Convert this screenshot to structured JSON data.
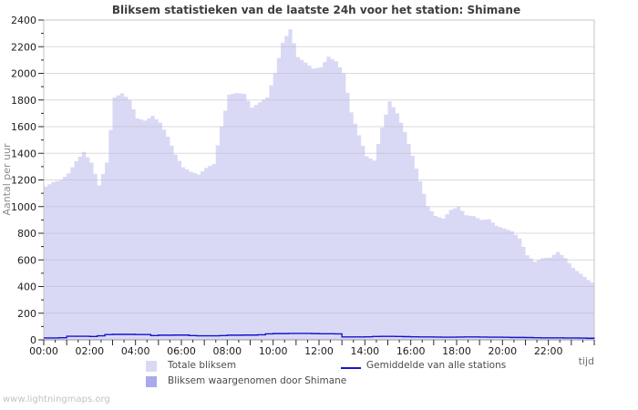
{
  "page": {
    "watermark": "www.lightningmaps.org"
  },
  "chart_data": {
    "type": "area",
    "title": "Bliksem statistieken van de laatste 24h voor het station: Shimane",
    "ylabel": "Aantal per uur",
    "xlabel": "tijd",
    "ylim": [
      0,
      2400
    ],
    "xlim_hours": [
      0,
      24
    ],
    "grid": "horizontal",
    "legend_position": "bottom",
    "y_tick_step": 200,
    "y_minor_tick_step": 100,
    "x_label_step_hours": 2,
    "x_minor_tick_minutes": 30,
    "y_tick_labels": [
      "0",
      "200",
      "400",
      "600",
      "800",
      "1000",
      "1200",
      "1400",
      "1600",
      "1800",
      "2000",
      "2200",
      "2400"
    ],
    "x_tick_labels": [
      "00:00",
      "02:00",
      "04:00",
      "06:00",
      "08:00",
      "10:00",
      "12:00",
      "14:00",
      "16:00",
      "18:00",
      "20:00",
      "22:00"
    ],
    "sample_step_minutes": 20,
    "colors": {
      "background": "#ffffff",
      "border": "#c4c4c4",
      "grid": "#b9b9c6",
      "axis": "#999999",
      "tick": "#2a2a2a",
      "tick_label": "#1c1c1c",
      "title": "#3d3d3d",
      "axis_title": "#8c8c8c",
      "watermark": "#c3c3c3",
      "legend_text": "#4a4a4a"
    },
    "series": [
      {
        "name": "Totale bliksem",
        "type": "area",
        "color": "#d9d9f6",
        "values": [
          1150,
          1185,
          1197,
          1250,
          1340,
          1410,
          1330,
          1160,
          1330,
          1820,
          1850,
          1800,
          1662,
          1645,
          1680,
          1630,
          1525,
          1390,
          1295,
          1262,
          1240,
          1290,
          1320,
          1600,
          1840,
          1852,
          1845,
          1742,
          1782,
          1820,
          2000,
          2230,
          2330,
          2122,
          2080,
          2035,
          2045,
          2125,
          2090,
          2000,
          1707,
          1535,
          1377,
          1345,
          1593,
          1790,
          1700,
          1560,
          1380,
          1190,
          1000,
          930,
          910,
          975,
          1000,
          935,
          928,
          900,
          905,
          855,
          836,
          815,
          760,
          635,
          585,
          613,
          617,
          660,
          613,
          540,
          495,
          448,
          412
        ]
      },
      {
        "name": "Bliksem waargenomen door Shimane",
        "type": "area",
        "color": "#a9a9ec",
        "values_constant": 0
      },
      {
        "name": "Gemiddelde van alle stations",
        "type": "line",
        "color": "#1414cc",
        "values": [
          14,
          14,
          16,
          27,
          27,
          27,
          25,
          30,
          40,
          41,
          41,
          41,
          40,
          40,
          32,
          35,
          35,
          36,
          36,
          32,
          30,
          30,
          30,
          32,
          35,
          35,
          36,
          36,
          38,
          45,
          47,
          47,
          48,
          48,
          48,
          47,
          46,
          46,
          45,
          22,
          22,
          22,
          23,
          25,
          26,
          26,
          25,
          24,
          23,
          22,
          22,
          21,
          20,
          20,
          21,
          22,
          22,
          21,
          20,
          20,
          19,
          18,
          18,
          17,
          16,
          15,
          15,
          15,
          14,
          14,
          13,
          12,
          10
        ]
      }
    ]
  }
}
